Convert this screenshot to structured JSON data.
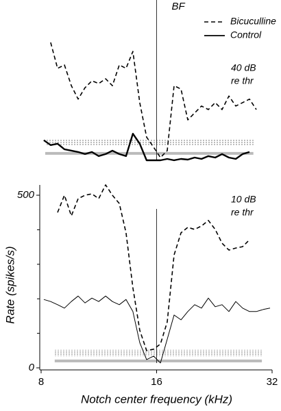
{
  "chart_data": [
    {
      "type": "line",
      "xscale": "log",
      "xlim": [
        8,
        32
      ],
      "ylim": [
        0,
        460
      ],
      "x": [
        8.13,
        8.47,
        8.83,
        9.2,
        9.59,
        9.99,
        10.41,
        10.85,
        11.3,
        11.78,
        12.27,
        12.79,
        13.32,
        13.88,
        14.46,
        15.07,
        15.71,
        16.37,
        17.05,
        17.77,
        18.52,
        19.29,
        20.1,
        20.95,
        21.83,
        22.74,
        23.7,
        24.69,
        25.73,
        26.81,
        27.94,
        29.11,
        30.34,
        31.61
      ],
      "vline": {
        "x": 16,
        "label": "BF"
      },
      "legend": "upper right",
      "annotation": [
        "40 dB",
        "re thr"
      ],
      "bands": [
        {
          "pattern": "dots",
          "color": "#555555",
          "x": [
            8.2,
            28.6
          ],
          "range": [
            44,
            62
          ]
        },
        {
          "color": "#bbbbbb",
          "x": [
            8.2,
            28.6
          ],
          "range": [
            16,
            24
          ]
        }
      ],
      "series": [
        {
          "name": "Bicuculline",
          "color": "#000000",
          "dash": true,
          "width": 1.6,
          "values": [
            null,
            341,
            266,
            276,
            216,
            177,
            210,
            230,
            222,
            236,
            216,
            276,
            266,
            315,
            167,
            67,
            38,
            8,
            28,
            216,
            206,
            117,
            137,
            157,
            147,
            167,
            147,
            186,
            157,
            167,
            177,
            147,
            null,
            null
          ]
        },
        {
          "name": "Control",
          "color": "#000000",
          "dash": false,
          "width": 2.4,
          "values": [
            58,
            44,
            48,
            32,
            28,
            24,
            18,
            24,
            12,
            18,
            28,
            18,
            12,
            77,
            48,
            0,
            0,
            0,
            4,
            0,
            4,
            2,
            8,
            4,
            12,
            8,
            18,
            8,
            4,
            18,
            24,
            null,
            null,
            null
          ]
        }
      ]
    },
    {
      "type": "line",
      "xscale": "log",
      "xlim": [
        8,
        32
      ],
      "xticks": [
        8,
        16,
        32
      ],
      "xlabel": "Notch center frequency (kHz)",
      "ylim": [
        0,
        500
      ],
      "yticks": [
        0,
        500
      ],
      "yminor": [
        100,
        200,
        300,
        400
      ],
      "ylabel": "Rate (spikes/s)",
      "x": [
        8.13,
        8.47,
        8.83,
        9.2,
        9.59,
        9.99,
        10.41,
        10.85,
        11.3,
        11.78,
        12.27,
        12.79,
        13.32,
        13.88,
        14.46,
        15.07,
        15.71,
        16.37,
        17.05,
        17.77,
        18.52,
        19.29,
        20.1,
        20.95,
        21.83,
        22.74,
        23.7,
        24.69,
        25.73,
        26.81,
        27.94,
        29.11,
        30.34,
        31.61
      ],
      "vline": {
        "x": 16
      },
      "annotation": [
        "10 dB",
        "re thr"
      ],
      "bands": [
        {
          "pattern": "dots",
          "color": "#555555",
          "x": [
            8.68,
            30.1
          ],
          "range": [
            34,
            52
          ]
        },
        {
          "color": "#bbbbbb",
          "x": [
            8.68,
            30.1
          ],
          "range": [
            16,
            24
          ]
        }
      ],
      "series": [
        {
          "color": "#000000",
          "dash": true,
          "width": 1.6,
          "values": [
            null,
            null,
            450,
            500,
            440,
            490,
            500,
            504,
            490,
            530,
            500,
            476,
            391,
            232,
            109,
            50,
            54,
            69,
            133,
            327,
            391,
            407,
            401,
            411,
            427,
            401,
            361,
            341,
            347,
            351,
            371,
            null,
            null,
            null
          ]
        },
        {
          "color": "#000000",
          "dash": false,
          "width": 1,
          "values": [
            198,
            192,
            183,
            173,
            192,
            208,
            188,
            202,
            192,
            208,
            192,
            183,
            198,
            163,
            73,
            24,
            34,
            14,
            83,
            153,
            139,
            163,
            183,
            173,
            202,
            177,
            183,
            163,
            192,
            173,
            163,
            163,
            169,
            173
          ]
        }
      ]
    }
  ]
}
